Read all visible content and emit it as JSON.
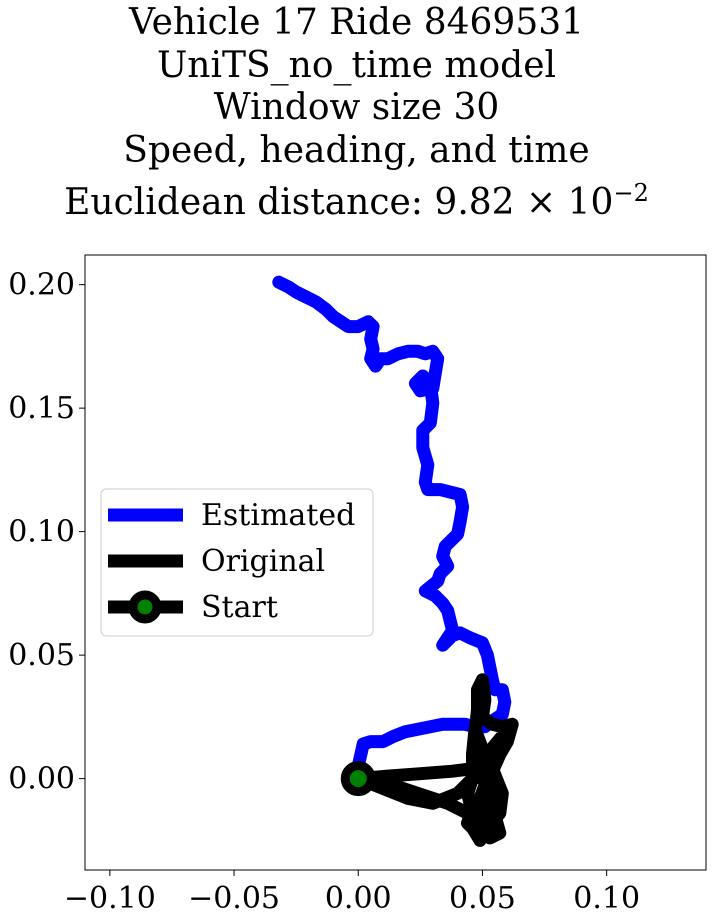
{
  "chart_data": {
    "type": "line",
    "title_lines": [
      "Vehicle 17 Ride 8469531",
      "UniTS_no_time model",
      "Window size 30",
      "Speed, heading, and time"
    ],
    "distance_line": {
      "prefix": "Euclidean distance: ",
      "mantissa": "9.82",
      "times": "×",
      "base": "10",
      "exponent": "−2"
    },
    "xlim": [
      -0.11,
      0.14
    ],
    "ylim": [
      -0.037,
      0.212
    ],
    "grid": false,
    "legend_placement": "center-left",
    "x_ticks": [
      -0.1,
      -0.05,
      0.0,
      0.05,
      0.1
    ],
    "x_tick_labels": [
      "−0.10",
      "−0.05",
      "0.00",
      "0.05",
      "0.10"
    ],
    "y_ticks": [
      0.0,
      0.05,
      0.1,
      0.15,
      0.2
    ],
    "y_tick_labels": [
      "0.00",
      "0.05",
      "0.10",
      "0.15",
      "0.20"
    ],
    "series": [
      {
        "name": "Estimated",
        "color": "#0000ff",
        "points": [
          [
            -0.032,
            0.201
          ],
          [
            -0.028,
            0.199
          ],
          [
            -0.025,
            0.197
          ],
          [
            -0.021,
            0.195
          ],
          [
            -0.017,
            0.193
          ],
          [
            -0.013,
            0.19
          ],
          [
            -0.01,
            0.187
          ],
          [
            -0.007,
            0.185
          ],
          [
            -0.004,
            0.183
          ],
          [
            0.0,
            0.183
          ],
          [
            0.004,
            0.185
          ],
          [
            0.006,
            0.183
          ],
          [
            0.005,
            0.178
          ],
          [
            0.006,
            0.174
          ],
          [
            0.005,
            0.17
          ],
          [
            0.007,
            0.167
          ],
          [
            0.009,
            0.17
          ],
          [
            0.012,
            0.17
          ],
          [
            0.016,
            0.172
          ],
          [
            0.02,
            0.173
          ],
          [
            0.024,
            0.173
          ],
          [
            0.027,
            0.172
          ],
          [
            0.03,
            0.173
          ],
          [
            0.032,
            0.17
          ],
          [
            0.031,
            0.164
          ],
          [
            0.03,
            0.158
          ],
          [
            0.025,
            0.157
          ],
          [
            0.023,
            0.16
          ],
          [
            0.026,
            0.163
          ],
          [
            0.029,
            0.16
          ],
          [
            0.03,
            0.152
          ],
          [
            0.029,
            0.144
          ],
          [
            0.026,
            0.141
          ],
          [
            0.026,
            0.134
          ],
          [
            0.028,
            0.127
          ],
          [
            0.027,
            0.12
          ],
          [
            0.028,
            0.117
          ],
          [
            0.033,
            0.117
          ],
          [
            0.037,
            0.116
          ],
          [
            0.041,
            0.115
          ],
          [
            0.042,
            0.11
          ],
          [
            0.041,
            0.104
          ],
          [
            0.04,
            0.099
          ],
          [
            0.035,
            0.094
          ],
          [
            0.034,
            0.09
          ],
          [
            0.036,
            0.086
          ],
          [
            0.033,
            0.083
          ],
          [
            0.032,
            0.08
          ],
          [
            0.027,
            0.076
          ],
          [
            0.031,
            0.074
          ],
          [
            0.034,
            0.071
          ],
          [
            0.036,
            0.068
          ],
          [
            0.037,
            0.064
          ],
          [
            0.038,
            0.06
          ],
          [
            0.034,
            0.054
          ],
          [
            0.038,
            0.058
          ],
          [
            0.041,
            0.059
          ],
          [
            0.045,
            0.057
          ],
          [
            0.05,
            0.055
          ],
          [
            0.052,
            0.05
          ],
          [
            0.053,
            0.045
          ],
          [
            0.054,
            0.04
          ],
          [
            0.055,
            0.036
          ],
          [
            0.058,
            0.036
          ],
          [
            0.059,
            0.031
          ],
          [
            0.058,
            0.026
          ],
          [
            0.055,
            0.024
          ],
          [
            0.051,
            0.021
          ],
          [
            0.047,
            0.021
          ],
          [
            0.043,
            0.022
          ],
          [
            0.039,
            0.022
          ],
          [
            0.034,
            0.022
          ],
          [
            0.029,
            0.021
          ],
          [
            0.024,
            0.02
          ],
          [
            0.019,
            0.019
          ],
          [
            0.014,
            0.017
          ],
          [
            0.01,
            0.015
          ],
          [
            0.005,
            0.015
          ],
          [
            0.002,
            0.014
          ],
          [
            0.0,
            0.005
          ],
          [
            0.0,
            0.0
          ]
        ]
      },
      {
        "name": "Original",
        "color": "#000000",
        "points": [
          [
            0.0,
            0.0
          ],
          [
            0.012,
            0.001
          ],
          [
            0.025,
            0.002
          ],
          [
            0.038,
            0.003
          ],
          [
            0.046,
            0.004
          ],
          [
            0.052,
            0.01
          ],
          [
            0.057,
            0.016
          ],
          [
            0.062,
            0.022
          ],
          [
            0.058,
            0.012
          ],
          [
            0.054,
            0.003
          ],
          [
            0.05,
            -0.006
          ],
          [
            0.046,
            -0.012
          ],
          [
            0.044,
            -0.018
          ],
          [
            0.048,
            -0.022
          ],
          [
            0.053,
            -0.019
          ],
          [
            0.055,
            -0.01
          ],
          [
            0.05,
            0.0
          ],
          [
            0.047,
            0.008
          ],
          [
            0.047,
            0.018
          ],
          [
            0.048,
            0.028
          ],
          [
            0.048,
            0.036
          ],
          [
            0.05,
            0.04
          ],
          [
            0.051,
            0.032
          ],
          [
            0.05,
            0.025
          ],
          [
            0.054,
            0.022
          ],
          [
            0.058,
            0.021
          ],
          [
            0.062,
            0.022
          ],
          [
            0.06,
            0.015
          ],
          [
            0.056,
            0.008
          ],
          [
            0.052,
            0.0
          ],
          [
            0.049,
            -0.008
          ],
          [
            0.047,
            -0.016
          ],
          [
            0.048,
            -0.022
          ],
          [
            0.052,
            -0.02
          ],
          [
            0.057,
            -0.014
          ],
          [
            0.058,
            -0.006
          ],
          [
            0.054,
            0.004
          ],
          [
            0.05,
            0.012
          ],
          [
            0.047,
            0.02
          ],
          [
            0.046,
            0.01
          ],
          [
            0.046,
            0.0
          ],
          [
            0.04,
            -0.006
          ],
          [
            0.03,
            -0.01
          ],
          [
            0.02,
            -0.008
          ],
          [
            0.01,
            -0.004
          ],
          [
            0.0,
            0.0
          ],
          [
            0.012,
            -0.002
          ],
          [
            0.024,
            -0.006
          ],
          [
            0.036,
            -0.01
          ],
          [
            0.044,
            -0.014
          ],
          [
            0.046,
            -0.02
          ],
          [
            0.049,
            -0.025
          ],
          [
            0.052,
            -0.018
          ],
          [
            0.056,
            -0.01
          ],
          [
            0.054,
            -0.003
          ],
          [
            0.05,
            0.002
          ],
          [
            0.046,
            0.0
          ],
          [
            0.044,
            -0.006
          ],
          [
            0.046,
            -0.014
          ],
          [
            0.05,
            -0.016
          ],
          [
            0.055,
            -0.015
          ],
          [
            0.057,
            -0.022
          ],
          [
            0.053,
            -0.024
          ],
          [
            0.05,
            -0.02
          ],
          [
            0.048,
            -0.014
          ],
          [
            0.05,
            -0.008
          ],
          [
            0.054,
            -0.006
          ],
          [
            0.052,
            -0.014
          ],
          [
            0.048,
            -0.018
          ],
          [
            0.051,
            -0.013
          ],
          [
            0.055,
            -0.017
          ],
          [
            0.052,
            -0.02
          ],
          [
            0.049,
            -0.016
          ],
          [
            0.052,
            -0.012
          ]
        ]
      }
    ],
    "start_marker": {
      "name": "Start",
      "x": 0.0,
      "y": 0.0,
      "edge_color": "#000000",
      "fill_color": "#008000"
    },
    "legend": {
      "items": [
        {
          "label": "Estimated",
          "color": "#0000ff",
          "kind": "line"
        },
        {
          "label": "Original",
          "color": "#000000",
          "kind": "line"
        },
        {
          "label": "Start",
          "color": "#000000",
          "kind": "marker"
        }
      ]
    }
  }
}
